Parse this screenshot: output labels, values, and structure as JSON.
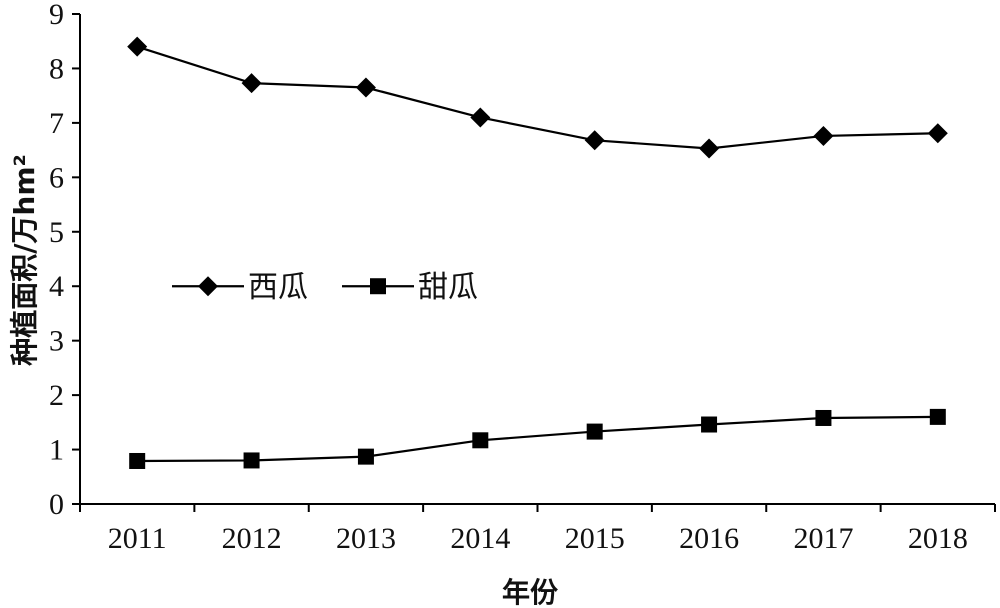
{
  "chart_data": {
    "type": "line",
    "title": "",
    "xlabel": "年份",
    "ylabel": "种植面积/万hm²",
    "ylim": [
      0,
      9
    ],
    "yticks": [
      0,
      1,
      2,
      3,
      4,
      5,
      6,
      7,
      8,
      9
    ],
    "categories": [
      "2011",
      "2012",
      "2013",
      "2014",
      "2015",
      "2016",
      "2017",
      "2018"
    ],
    "grid": false,
    "legend": {
      "placement": "middle-left",
      "orientation": "horizontal"
    },
    "series": [
      {
        "name": "西瓜",
        "marker": "diamond",
        "color": "#000000",
        "values": [
          8.4,
          7.73,
          7.65,
          7.1,
          6.68,
          6.53,
          6.76,
          6.81
        ]
      },
      {
        "name": "甜瓜",
        "marker": "square",
        "color": "#000000",
        "values": [
          0.79,
          0.8,
          0.87,
          1.17,
          1.33,
          1.46,
          1.58,
          1.6
        ]
      }
    ]
  }
}
